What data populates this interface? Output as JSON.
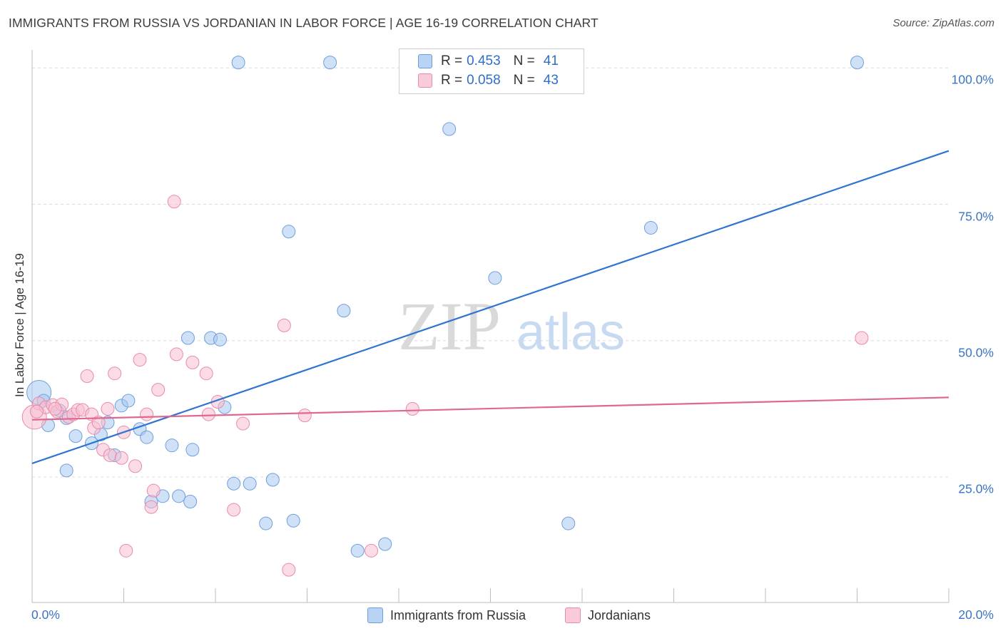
{
  "title": "IMMIGRANTS FROM RUSSIA VS JORDANIAN IN LABOR FORCE | AGE 16-19 CORRELATION CHART",
  "source": "Source: ZipAtlas.com",
  "watermark": {
    "zip": "ZIP",
    "atlas": "atlas"
  },
  "legend": {
    "r_label": "R =",
    "n_label": "N =",
    "series1": {
      "r": "0.453",
      "n": "41"
    },
    "series2": {
      "r": "0.058",
      "n": "43"
    }
  },
  "chart_data": {
    "type": "scatter",
    "title": "IMMIGRANTS FROM RUSSIA VS JORDANIAN IN LABOR FORCE | AGE 16-19 CORRELATION CHART",
    "xlabel": "",
    "ylabel": "In Labor Force | Age 16-19",
    "xlim": [
      0,
      20
    ],
    "ylim": [
      2,
      102
    ],
    "x_tick_labels": [
      "0.0%",
      "20.0%"
    ],
    "y_tick_labels": [
      {
        "value": 100,
        "label": "100.0%"
      },
      {
        "value": 75,
        "label": "75.0%"
      },
      {
        "value": 50,
        "label": "50.0%"
      },
      {
        "value": 25,
        "label": "25.0%"
      }
    ],
    "series": [
      {
        "name": "Immigrants from Russia",
        "color": "#a7c8f0",
        "stroke": "#6f9fdb",
        "trend": {
          "x": [
            0,
            20
          ],
          "y": [
            27.5,
            84.8
          ],
          "color": "#2f74d0"
        },
        "points": [
          [
            0.15,
            40.5
          ],
          [
            0.25,
            39.0
          ],
          [
            0.35,
            34.5
          ],
          [
            0.6,
            37.2
          ],
          [
            0.75,
            35.8
          ],
          [
            0.75,
            26.2
          ],
          [
            0.95,
            32.5
          ],
          [
            1.3,
            31.2
          ],
          [
            1.5,
            32.8
          ],
          [
            1.65,
            35.0
          ],
          [
            1.8,
            29.0
          ],
          [
            1.95,
            38.1
          ],
          [
            2.1,
            39.0
          ],
          [
            2.35,
            33.8
          ],
          [
            2.5,
            32.3
          ],
          [
            2.6,
            20.5
          ],
          [
            2.85,
            21.5
          ],
          [
            3.05,
            30.8
          ],
          [
            3.2,
            21.5
          ],
          [
            3.45,
            20.5
          ],
          [
            3.5,
            30.0
          ],
          [
            3.4,
            50.5
          ],
          [
            3.9,
            50.5
          ],
          [
            4.1,
            50.2
          ],
          [
            4.2,
            37.8
          ],
          [
            4.4,
            23.8
          ],
          [
            4.5,
            101.0
          ],
          [
            4.75,
            23.8
          ],
          [
            5.1,
            16.5
          ],
          [
            5.25,
            24.5
          ],
          [
            5.6,
            70.0
          ],
          [
            5.7,
            17.0
          ],
          [
            6.5,
            101.0
          ],
          [
            6.8,
            55.5
          ],
          [
            7.1,
            11.5
          ],
          [
            7.7,
            12.7
          ],
          [
            9.1,
            88.8
          ],
          [
            10.1,
            61.5
          ],
          [
            11.7,
            16.5
          ],
          [
            13.5,
            70.7
          ],
          [
            18.0,
            101.0
          ]
        ]
      },
      {
        "name": "Jordanians",
        "color": "#f7bfd1",
        "stroke": "#e88aab",
        "trend": {
          "x": [
            0,
            20
          ],
          "y": [
            35.5,
            39.6
          ],
          "color": "#e0688f"
        },
        "points": [
          [
            0.05,
            36.0
          ],
          [
            0.15,
            38.5
          ],
          [
            0.3,
            37.8
          ],
          [
            0.45,
            38.2
          ],
          [
            0.55,
            37.0
          ],
          [
            0.65,
            38.3
          ],
          [
            0.8,
            36.0
          ],
          [
            0.9,
            36.5
          ],
          [
            1.0,
            37.3
          ],
          [
            1.1,
            37.3
          ],
          [
            1.2,
            43.5
          ],
          [
            1.3,
            36.5
          ],
          [
            1.35,
            34.0
          ],
          [
            1.45,
            35.0
          ],
          [
            1.55,
            30.0
          ],
          [
            1.65,
            37.5
          ],
          [
            1.7,
            29.0
          ],
          [
            1.8,
            44.0
          ],
          [
            1.95,
            28.5
          ],
          [
            2.0,
            33.2
          ],
          [
            2.05,
            11.5
          ],
          [
            2.25,
            27.0
          ],
          [
            2.35,
            46.5
          ],
          [
            2.5,
            36.5
          ],
          [
            2.6,
            19.5
          ],
          [
            2.65,
            22.5
          ],
          [
            2.75,
            41.0
          ],
          [
            3.1,
            75.5
          ],
          [
            3.15,
            47.5
          ],
          [
            3.5,
            46.0
          ],
          [
            3.8,
            44.0
          ],
          [
            3.85,
            36.5
          ],
          [
            4.05,
            38.8
          ],
          [
            4.4,
            19.0
          ],
          [
            4.6,
            34.8
          ],
          [
            5.5,
            52.8
          ],
          [
            5.6,
            8.0
          ],
          [
            5.95,
            36.3
          ],
          [
            7.4,
            11.5
          ],
          [
            8.3,
            37.5
          ],
          [
            18.1,
            50.5
          ],
          [
            0.1,
            37.0
          ],
          [
            0.5,
            37.5
          ]
        ]
      }
    ]
  }
}
